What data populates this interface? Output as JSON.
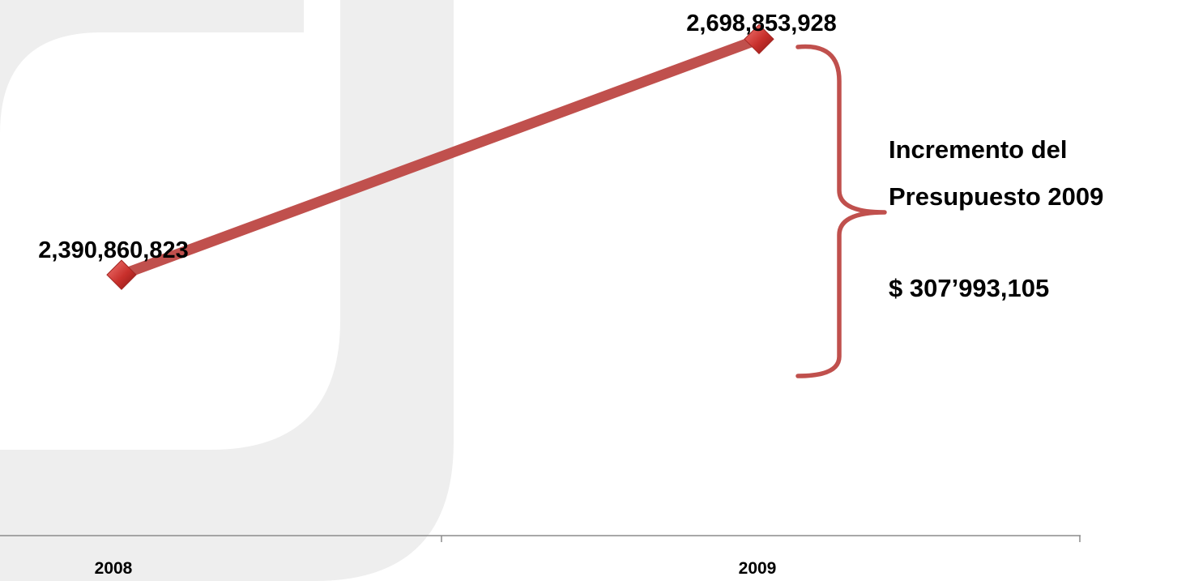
{
  "chart_data": {
    "type": "line",
    "categories": [
      "2008",
      "2009"
    ],
    "series": [
      {
        "values": [
          2390860823,
          2698853928
        ],
        "data_labels": [
          "2,390,860,823",
          "2,698,853,928"
        ]
      }
    ],
    "ylim": [
      2050000000,
      2750000000
    ],
    "grid": false,
    "line_color": "#c0504d",
    "marker": "diamond",
    "annotation": {
      "lines": [
        "Incremento del",
        "Presupuesto 2009",
        "",
        "$ 307’993,105"
      ],
      "bracket_color": "#c0504d"
    }
  },
  "colors": {
    "background": "#ffffff",
    "watermark": "#eeeeee",
    "axis": "#8c8c8c",
    "text": "#000000"
  }
}
